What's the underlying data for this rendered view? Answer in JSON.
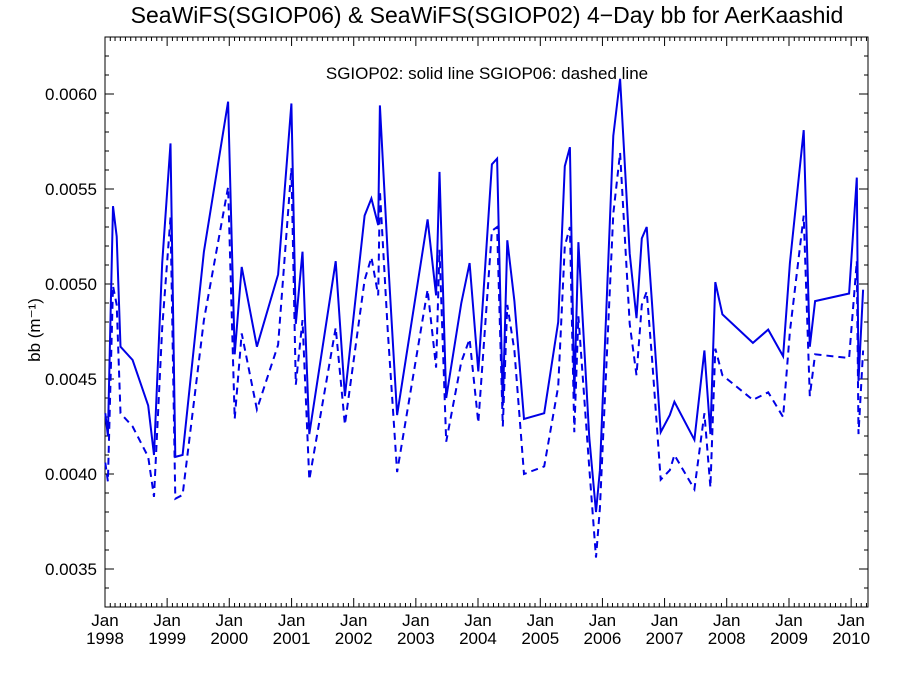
{
  "chart_data": {
    "type": "line",
    "title": "SeaWiFS(SGIOP06) & SeaWiFS(SGIOP02) 4−Day bb for AerKaashid",
    "annotation": "SGIOP02: solid line   SGIOP06: dashed line",
    "ylabel": "bb (m⁻¹)",
    "xlabel": "",
    "ylim": [
      0.0033,
      0.0063
    ],
    "xlim": [
      "1998-01-01",
      "2010-04-10"
    ],
    "y_ticks": [
      "0.0035",
      "0.0040",
      "0.0045",
      "0.0050",
      "0.0055",
      "0.0060"
    ],
    "y_tick_values": [
      0.0035,
      0.004,
      0.0045,
      0.005,
      0.0055,
      0.006
    ],
    "x_ticks": [
      {
        "month": "Jan",
        "year": "1998",
        "date": "1998-01-01"
      },
      {
        "month": "Jan",
        "year": "1999",
        "date": "1999-01-01"
      },
      {
        "month": "Jan",
        "year": "2000",
        "date": "2000-01-01"
      },
      {
        "month": "Jan",
        "year": "2001",
        "date": "2001-01-01"
      },
      {
        "month": "Jan",
        "year": "2002",
        "date": "2002-01-01"
      },
      {
        "month": "Jan",
        "year": "2003",
        "date": "2003-01-01"
      },
      {
        "month": "Jan",
        "year": "2004",
        "date": "2004-01-01"
      },
      {
        "month": "Jan",
        "year": "2005",
        "date": "2005-01-01"
      },
      {
        "month": "Jan",
        "year": "2006",
        "date": "2006-01-01"
      },
      {
        "month": "Jan",
        "year": "2007",
        "date": "2007-01-01"
      },
      {
        "month": "Jan",
        "year": "2008",
        "date": "2008-01-01"
      },
      {
        "month": "Jan",
        "year": "2009",
        "date": "2009-01-01"
      },
      {
        "month": "Jan",
        "year": "2010",
        "date": "2010-01-01"
      }
    ],
    "grid": false,
    "legend": "none",
    "series": [
      {
        "name": "SGIOP02",
        "style": "solid",
        "color": "#0000e6",
        "points": [
          [
            "1998-01-03",
            0.00432
          ],
          [
            "1998-01-18",
            0.0042
          ],
          [
            "1998-02-17",
            0.00541
          ],
          [
            "1998-03-11",
            0.00525
          ],
          [
            "1998-04-02",
            0.00467
          ],
          [
            "1998-06-12",
            0.0046
          ],
          [
            "1998-09-12",
            0.00436
          ],
          [
            "1998-10-16",
            0.0041
          ],
          [
            "1998-12-03",
            0.00511
          ],
          [
            "1999-01-21",
            0.00574
          ],
          [
            "1999-02-18",
            0.00409
          ],
          [
            "1999-04-02",
            0.0041
          ],
          [
            "1999-08-05",
            0.00517
          ],
          [
            "1999-12-25",
            0.00596
          ],
          [
            "2000-02-02",
            0.00463
          ],
          [
            "2000-03-14",
            0.00509
          ],
          [
            "2000-06-11",
            0.00467
          ],
          [
            "2000-10-14",
            0.00505
          ],
          [
            "2000-12-31",
            0.00595
          ],
          [
            "2001-01-26",
            0.00479
          ],
          [
            "2001-03-06",
            0.00517
          ],
          [
            "2001-04-15",
            0.00421
          ],
          [
            "2001-09-17",
            0.00512
          ],
          [
            "2001-11-10",
            0.00441
          ],
          [
            "2002-03-06",
            0.00536
          ],
          [
            "2002-04-15",
            0.00545
          ],
          [
            "2002-05-25",
            0.00531
          ],
          [
            "2002-06-04",
            0.00594
          ],
          [
            "2002-07-20",
            0.00515
          ],
          [
            "2002-09-13",
            0.00431
          ],
          [
            "2003-03-11",
            0.00534
          ],
          [
            "2003-04-30",
            0.00494
          ],
          [
            "2003-05-20",
            0.00559
          ],
          [
            "2003-06-28",
            0.0044
          ],
          [
            "2003-09-25",
            0.0049
          ],
          [
            "2003-11-13",
            0.00511
          ],
          [
            "2004-01-03",
            0.00454
          ],
          [
            "2004-03-23",
            0.00563
          ],
          [
            "2004-04-22",
            0.00566
          ],
          [
            "2004-05-26",
            0.00436
          ],
          [
            "2004-06-21",
            0.00523
          ],
          [
            "2004-08-02",
            0.00491
          ],
          [
            "2004-09-27",
            0.00429
          ],
          [
            "2005-01-24",
            0.00432
          ],
          [
            "2005-04-16",
            0.0048
          ],
          [
            "2005-05-25",
            0.00562
          ],
          [
            "2005-06-24",
            0.00572
          ],
          [
            "2005-07-20",
            0.00441
          ],
          [
            "2005-08-13",
            0.00522
          ],
          [
            "2005-10-16",
            0.00419
          ],
          [
            "2005-11-24",
            0.0038
          ],
          [
            "2005-12-17",
            0.00402
          ],
          [
            "2006-03-06",
            0.00578
          ],
          [
            "2006-04-15",
            0.00608
          ],
          [
            "2006-06-10",
            0.00516
          ],
          [
            "2006-07-20",
            0.00482
          ],
          [
            "2006-08-20",
            0.00524
          ],
          [
            "2006-09-18",
            0.0053
          ],
          [
            "2006-10-19",
            0.0049
          ],
          [
            "2006-12-09",
            0.00422
          ],
          [
            "2007-02-01",
            0.00431
          ],
          [
            "2007-02-28",
            0.00438
          ],
          [
            "2007-06-25",
            0.00418
          ],
          [
            "2007-08-23",
            0.00465
          ],
          [
            "2007-09-27",
            0.00421
          ],
          [
            "2007-10-26",
            0.00501
          ],
          [
            "2007-12-07",
            0.00484
          ],
          [
            "2008-06-03",
            0.00469
          ],
          [
            "2008-09-01",
            0.00476
          ],
          [
            "2008-11-27",
            0.00462
          ],
          [
            "2009-01-06",
            0.00511
          ],
          [
            "2009-03-28",
            0.00581
          ],
          [
            "2009-05-03",
            0.00467
          ],
          [
            "2009-06-03",
            0.00491
          ],
          [
            "2009-12-20",
            0.00495
          ],
          [
            "2010-02-03",
            0.00556
          ],
          [
            "2010-02-13",
            0.00449
          ],
          [
            "2010-03-12",
            0.00497
          ]
        ]
      },
      {
        "name": "SGIOP06",
        "style": "dashed",
        "color": "#0000e6",
        "points": [
          [
            "1998-01-03",
            0.00406
          ],
          [
            "1998-01-18",
            0.00396
          ],
          [
            "1998-02-17",
            0.00499
          ],
          [
            "1998-03-11",
            0.00489
          ],
          [
            "1998-04-02",
            0.00432
          ],
          [
            "1998-06-12",
            0.00425
          ],
          [
            "1998-09-12",
            0.00409
          ],
          [
            "1998-10-16",
            0.00388
          ],
          [
            "1998-12-03",
            0.00477
          ],
          [
            "1999-01-21",
            0.00535
          ],
          [
            "1999-02-18",
            0.00387
          ],
          [
            "1999-04-02",
            0.00389
          ],
          [
            "1999-08-05",
            0.00481
          ],
          [
            "1999-12-25",
            0.00551
          ],
          [
            "2000-02-02",
            0.00429
          ],
          [
            "2000-03-14",
            0.00474
          ],
          [
            "2000-06-11",
            0.00434
          ],
          [
            "2000-10-14",
            0.00468
          ],
          [
            "2000-12-31",
            0.00561
          ],
          [
            "2001-01-26",
            0.00447
          ],
          [
            "2001-03-06",
            0.00481
          ],
          [
            "2001-04-15",
            0.00397
          ],
          [
            "2001-09-17",
            0.00477
          ],
          [
            "2001-11-10",
            0.00426
          ],
          [
            "2002-03-06",
            0.00502
          ],
          [
            "2002-04-15",
            0.00514
          ],
          [
            "2002-05-25",
            0.00494
          ],
          [
            "2002-06-04",
            0.00549
          ],
          [
            "2002-07-20",
            0.00475
          ],
          [
            "2002-09-13",
            0.00401
          ],
          [
            "2003-03-11",
            0.00497
          ],
          [
            "2003-04-30",
            0.00456
          ],
          [
            "2003-05-20",
            0.00518
          ],
          [
            "2003-06-28",
            0.00417
          ],
          [
            "2003-09-25",
            0.00459
          ],
          [
            "2003-11-13",
            0.00471
          ],
          [
            "2004-01-03",
            0.00427
          ],
          [
            "2004-03-23",
            0.00528
          ],
          [
            "2004-04-22",
            0.0053
          ],
          [
            "2004-05-26",
            0.00425
          ],
          [
            "2004-06-21",
            0.00489
          ],
          [
            "2004-08-02",
            0.00465
          ],
          [
            "2004-09-27",
            0.004
          ],
          [
            "2005-01-24",
            0.00404
          ],
          [
            "2005-04-16",
            0.00446
          ],
          [
            "2005-05-25",
            0.0052
          ],
          [
            "2005-06-24",
            0.0053
          ],
          [
            "2005-07-20",
            0.00422
          ],
          [
            "2005-08-13",
            0.00483
          ],
          [
            "2005-10-16",
            0.00403
          ],
          [
            "2005-11-24",
            0.00356
          ],
          [
            "2005-12-17",
            0.00382
          ],
          [
            "2006-03-06",
            0.00537
          ],
          [
            "2006-04-15",
            0.00569
          ],
          [
            "2006-06-10",
            0.00479
          ],
          [
            "2006-07-20",
            0.00452
          ],
          [
            "2006-08-20",
            0.00489
          ],
          [
            "2006-09-18",
            0.00496
          ],
          [
            "2006-10-19",
            0.00461
          ],
          [
            "2006-12-09",
            0.00397
          ],
          [
            "2007-02-01",
            0.00402
          ],
          [
            "2007-02-28",
            0.0041
          ],
          [
            "2007-06-25",
            0.00392
          ],
          [
            "2007-08-23",
            0.00432
          ],
          [
            "2007-09-27",
            0.00393
          ],
          [
            "2007-10-26",
            0.00466
          ],
          [
            "2007-12-07",
            0.00452
          ],
          [
            "2008-06-03",
            0.00439
          ],
          [
            "2008-09-01",
            0.00443
          ],
          [
            "2008-11-27",
            0.0043
          ],
          [
            "2009-01-06",
            0.00475
          ],
          [
            "2009-03-28",
            0.00536
          ],
          [
            "2009-05-03",
            0.00441
          ],
          [
            "2009-06-03",
            0.00463
          ],
          [
            "2009-12-20",
            0.00461
          ],
          [
            "2010-02-03",
            0.00512
          ],
          [
            "2010-02-13",
            0.00421
          ],
          [
            "2010-03-12",
            0.00465
          ]
        ]
      }
    ]
  }
}
